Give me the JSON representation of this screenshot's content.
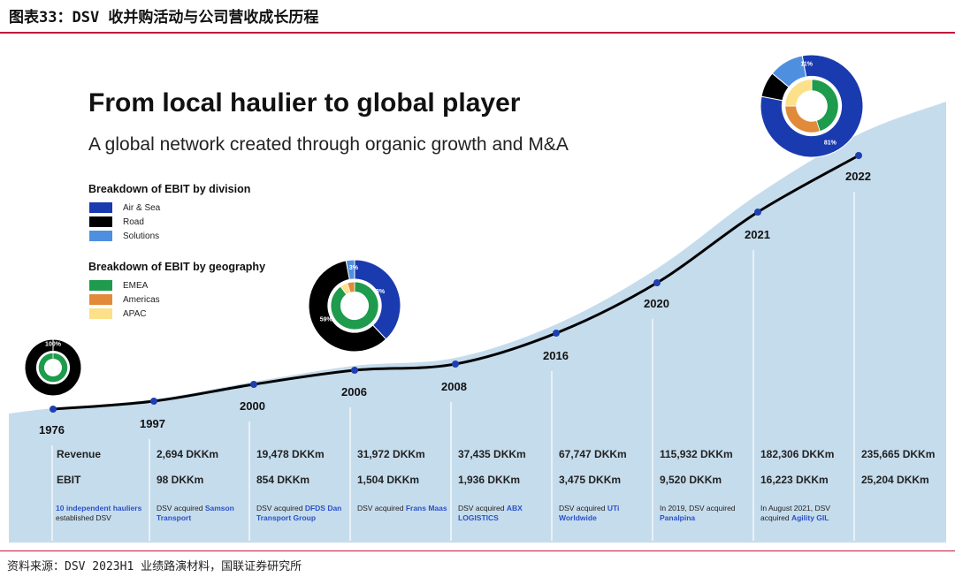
{
  "figure": {
    "title": "图表33：DSV 收并购活动与公司营收成长历程",
    "source": "资料来源：DSV 2023H1 业绩路演材料，国联证券研究所"
  },
  "chart_data": {
    "type": "line",
    "title": "From local haulier to global player",
    "subtitle": "A global network created through organic growth and M&A",
    "x": [
      "1976",
      "1997",
      "2000",
      "2006",
      "2008",
      "2016",
      "2020",
      "2021",
      "2022"
    ],
    "row_labels": {
      "revenue": "Revenue",
      "ebit": "EBIT"
    },
    "series": [
      {
        "name": "Revenue",
        "unit": "DKKm",
        "values": [
          null,
          2694,
          19478,
          31972,
          37435,
          67747,
          115932,
          182306,
          235665
        ]
      },
      {
        "name": "EBIT",
        "unit": "DKKm",
        "values": [
          null,
          98,
          854,
          1504,
          1936,
          3475,
          9520,
          16223,
          25204
        ]
      }
    ],
    "revenue_labels": [
      "",
      "2,694 DKKm",
      "19,478 DKKm",
      "31,972 DKKm",
      "37,435 DKKm",
      "67,747 DKKm",
      "115,932 DKKm",
      "182,306 DKKm",
      "235,665 DKKm"
    ],
    "ebit_labels": [
      "",
      "98 DKKm",
      "854 DKKm",
      "1,504 DKKm",
      "1,936 DKKm",
      "3,475 DKKm",
      "9,520 DKKm",
      "16,223 DKKm",
      "25,204 DKKm"
    ],
    "notes": [
      {
        "highlight": "10 independent hauliers",
        "text": "established DSV"
      },
      {
        "prefix": "DSV acquired ",
        "highlight": "Samson Transport"
      },
      {
        "prefix": "DSV acquired ",
        "highlight": "DFDS Dan Transport Group"
      },
      {
        "prefix": "DSV acquired ",
        "highlight": "Frans Maas"
      },
      {
        "prefix": "DSV acquired ",
        "highlight": "ABX LOGISTICS"
      },
      {
        "prefix": "DSV acquired ",
        "highlight": "UTi Worldwide"
      },
      {
        "prefix": "In 2019, DSV acquired ",
        "highlight": "Panalpina"
      },
      {
        "prefix": "",
        "text": "In August 2021, DSV acquired ",
        "highlight": "Agility GIL"
      },
      {
        "prefix": "",
        "highlight": ""
      }
    ],
    "legend_division": {
      "title": "Breakdown of EBIT by division",
      "items": [
        {
          "label": "Air & Sea",
          "color": "#1a3ab0"
        },
        {
          "label": "Road",
          "color": "#000000"
        },
        {
          "label": "Solutions",
          "color": "#4f8fe0"
        }
      ]
    },
    "legend_geography": {
      "title": "Breakdown of EBIT by geography",
      "items": [
        {
          "label": "EMEA",
          "color": "#1e9b4c"
        },
        {
          "label": "Americas",
          "color": "#e08a3a"
        },
        {
          "label": "APAC",
          "color": "#fce08a"
        }
      ]
    },
    "donuts": [
      {
        "year": "1976",
        "division": [
          {
            "name": "Road",
            "value": 100,
            "label": "100%"
          }
        ],
        "geography": [
          {
            "name": "EMEA",
            "value": 100
          }
        ]
      },
      {
        "year": "2006",
        "division": [
          {
            "name": "Air & Sea",
            "value": 38,
            "label": "38%"
          },
          {
            "name": "Road",
            "value": 59,
            "label": "59%"
          },
          {
            "name": "Solutions",
            "value": 3,
            "label": "3%"
          }
        ],
        "geography": [
          {
            "name": "EMEA",
            "value": 90
          },
          {
            "name": "APAC",
            "value": 5
          },
          {
            "name": "Americas",
            "value": 5
          }
        ]
      },
      {
        "year": "2022",
        "division": [
          {
            "name": "Air & Sea",
            "value": 81,
            "label": "81%"
          },
          {
            "name": "Road",
            "value": 8,
            "label": "8%"
          },
          {
            "name": "Solutions",
            "value": 11,
            "label": "11%"
          }
        ],
        "geography": [
          {
            "name": "EMEA",
            "value": 45
          },
          {
            "name": "Americas",
            "value": 30
          },
          {
            "name": "APAC",
            "value": 25
          }
        ]
      }
    ],
    "colors": {
      "area": "#c5dcec",
      "line": "#000000",
      "marker": "#1f3fb0",
      "division": {
        "Air & Sea": "#1a3ab0",
        "Road": "#000000",
        "Solutions": "#4f8fe0"
      },
      "geography": {
        "EMEA": "#1e9b4c",
        "Americas": "#e08a3a",
        "APAC": "#fce08a"
      }
    }
  }
}
